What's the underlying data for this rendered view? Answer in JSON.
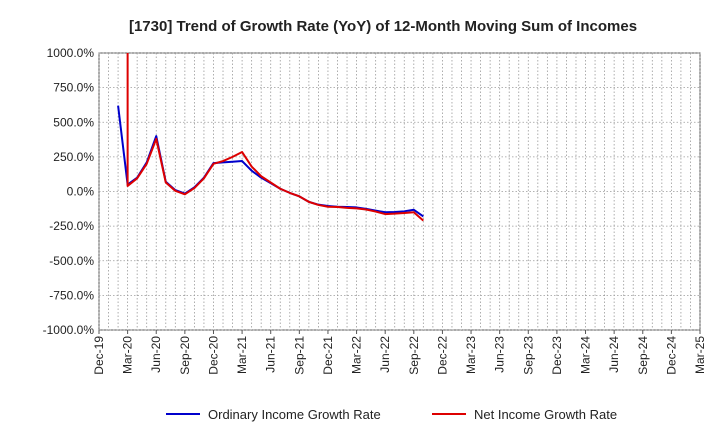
{
  "chart_data": {
    "type": "line",
    "title": "[1730]  Trend of Growth Rate (YoY) of 12-Month Moving Sum of Incomes",
    "xlabel": "",
    "ylabel": "",
    "ylim": [
      -1000,
      1000
    ],
    "y_ticks": [
      "1000.0%",
      "750.0%",
      "500.0%",
      "250.0%",
      "0.0%",
      "-250.0%",
      "-500.0%",
      "-750.0%",
      "-1000.0%"
    ],
    "y_tick_values": [
      1000,
      750,
      500,
      250,
      0,
      -250,
      -500,
      -750,
      -1000
    ],
    "x_ticks": [
      "Dec-19",
      "Mar-20",
      "Jun-20",
      "Sep-20",
      "Dec-20",
      "Mar-21",
      "Jun-21",
      "Sep-21",
      "Dec-21",
      "Mar-22",
      "Jun-22",
      "Sep-22",
      "Dec-22",
      "Mar-23",
      "Jun-23",
      "Sep-23",
      "Dec-23",
      "Mar-24",
      "Jun-24",
      "Sep-24",
      "Dec-24",
      "Mar-25"
    ],
    "grid": true,
    "legend_position": "bottom",
    "series": [
      {
        "name": "Ordinary Income Growth Rate",
        "color": "#0000cc",
        "x": [
          "Feb-20",
          "Mar-20",
          "Apr-20",
          "May-20",
          "Jun-20",
          "Jul-20",
          "Aug-20",
          "Sep-20",
          "Oct-20",
          "Nov-20",
          "Dec-20",
          "Jan-21",
          "Feb-21",
          "Mar-21",
          "Apr-21",
          "May-21",
          "Jun-21",
          "Jul-21",
          "Aug-21",
          "Sep-21",
          "Oct-21",
          "Nov-21",
          "Dec-21",
          "Jan-22",
          "Feb-22",
          "Mar-22",
          "Apr-22",
          "May-22",
          "Jun-22",
          "Jul-22",
          "Aug-22",
          "Sep-22",
          "Oct-22"
        ],
        "values": [
          620,
          50,
          100,
          210,
          400,
          70,
          10,
          -15,
          30,
          100,
          205,
          210,
          215,
          220,
          150,
          100,
          60,
          20,
          -10,
          -35,
          -75,
          -95,
          -105,
          -110,
          -112,
          -115,
          -125,
          -138,
          -150,
          -148,
          -143,
          -132,
          -180
        ]
      },
      {
        "name": "Net Income Growth Rate",
        "color": "#dd0000",
        "x": [
          "Mar-20",
          "Mar-20",
          "Apr-20",
          "May-20",
          "Jun-20",
          "Jul-20",
          "Aug-20",
          "Sep-20",
          "Oct-20",
          "Nov-20",
          "Dec-20",
          "Jan-21",
          "Feb-21",
          "Mar-21",
          "Apr-21",
          "May-21",
          "Jun-21",
          "Jul-21",
          "Aug-21",
          "Sep-21",
          "Oct-21",
          "Nov-21",
          "Dec-21",
          "Jan-22",
          "Feb-22",
          "Mar-22",
          "Apr-22",
          "May-22",
          "Jun-22",
          "Jul-22",
          "Aug-22",
          "Sep-22",
          "Oct-22"
        ],
        "values": [
          1000,
          40,
          95,
          200,
          380,
          65,
          5,
          -20,
          25,
          95,
          200,
          220,
          250,
          285,
          180,
          110,
          65,
          20,
          -10,
          -35,
          -75,
          -97,
          -110,
          -112,
          -118,
          -122,
          -130,
          -145,
          -163,
          -160,
          -155,
          -150,
          -210
        ]
      }
    ]
  }
}
